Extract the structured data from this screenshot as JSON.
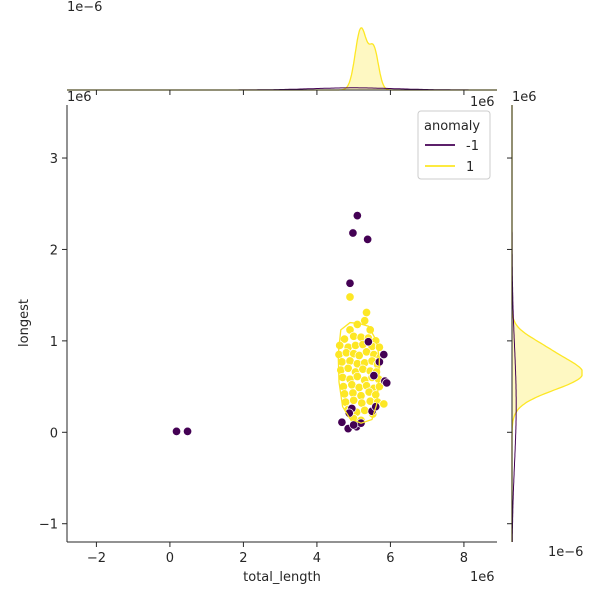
{
  "chart_data": {
    "type": "scatter",
    "xlabel": "total_length",
    "ylabel": "longest",
    "x_offset_label": "1e6",
    "y_offset_label": "1e6",
    "top_marginal_offset_label": "1e−6",
    "right_marginal_offset_label": "1e−6",
    "xlim": [
      -2.8,
      8.9
    ],
    "ylim": [
      -1.2,
      3.58
    ],
    "xticks": [
      -2,
      0,
      2,
      4,
      6,
      8
    ],
    "xtick_labels": [
      "−2",
      "0",
      "2",
      "4",
      "6",
      "8"
    ],
    "yticks": [
      -1,
      0,
      1,
      2,
      3
    ],
    "ytick_labels": [
      "−1",
      "0",
      "1",
      "2",
      "3"
    ],
    "grid": false,
    "legend": {
      "title": "anomaly",
      "placement": "top-right",
      "entries": [
        {
          "label": "-1",
          "color": "#440154"
        },
        {
          "label": "1",
          "color": "#fde725"
        }
      ]
    },
    "series": [
      {
        "name": "-1",
        "color": "#440154",
        "points": [
          [
            0.18,
            0.01
          ],
          [
            0.48,
            0.01
          ],
          [
            5.1,
            2.37
          ],
          [
            4.98,
            2.18
          ],
          [
            5.38,
            2.11
          ],
          [
            4.9,
            1.63
          ],
          [
            5.82,
            0.85
          ],
          [
            5.7,
            0.77
          ],
          [
            5.4,
            0.99
          ],
          [
            5.85,
            0.56
          ],
          [
            5.9,
            0.54
          ],
          [
            5.55,
            0.62
          ],
          [
            5.5,
            0.23
          ],
          [
            4.95,
            0.26
          ],
          [
            4.88,
            0.21
          ],
          [
            5.6,
            0.28
          ],
          [
            4.68,
            0.11
          ],
          [
            4.85,
            0.04
          ],
          [
            5.08,
            0.06
          ],
          [
            5.2,
            0.1
          ],
          [
            5.0,
            0.08
          ]
        ]
      },
      {
        "name": "1",
        "color": "#fde725",
        "points": [
          [
            4.9,
            1.48
          ],
          [
            5.35,
            1.31
          ],
          [
            5.3,
            1.22
          ],
          [
            5.1,
            1.18
          ],
          [
            4.9,
            1.12
          ],
          [
            5.45,
            1.12
          ],
          [
            4.75,
            1.02
          ],
          [
            5.0,
            1.05
          ],
          [
            5.2,
            1.04
          ],
          [
            5.4,
            1.03
          ],
          [
            5.6,
            1.0
          ],
          [
            4.62,
            0.95
          ],
          [
            4.85,
            0.93
          ],
          [
            5.05,
            0.95
          ],
          [
            5.25,
            0.96
          ],
          [
            5.5,
            0.94
          ],
          [
            5.7,
            0.93
          ],
          [
            4.6,
            0.85
          ],
          [
            4.8,
            0.87
          ],
          [
            5.0,
            0.86
          ],
          [
            5.15,
            0.84
          ],
          [
            5.35,
            0.88
          ],
          [
            5.55,
            0.85
          ],
          [
            5.72,
            0.82
          ],
          [
            4.68,
            0.77
          ],
          [
            4.9,
            0.78
          ],
          [
            5.1,
            0.75
          ],
          [
            5.3,
            0.76
          ],
          [
            5.5,
            0.78
          ],
          [
            5.65,
            0.74
          ],
          [
            4.65,
            0.68
          ],
          [
            4.85,
            0.7
          ],
          [
            5.05,
            0.66
          ],
          [
            5.25,
            0.69
          ],
          [
            5.45,
            0.67
          ],
          [
            5.62,
            0.66
          ],
          [
            4.7,
            0.6
          ],
          [
            4.9,
            0.58
          ],
          [
            5.1,
            0.61
          ],
          [
            5.3,
            0.57
          ],
          [
            5.5,
            0.6
          ],
          [
            5.68,
            0.58
          ],
          [
            4.72,
            0.5
          ],
          [
            4.95,
            0.52
          ],
          [
            5.15,
            0.49
          ],
          [
            5.35,
            0.51
          ],
          [
            5.55,
            0.48
          ],
          [
            5.7,
            0.5
          ],
          [
            4.75,
            0.42
          ],
          [
            4.98,
            0.43
          ],
          [
            5.2,
            0.4
          ],
          [
            5.42,
            0.44
          ],
          [
            5.6,
            0.41
          ],
          [
            4.78,
            0.33
          ],
          [
            5.0,
            0.35
          ],
          [
            5.22,
            0.32
          ],
          [
            5.45,
            0.34
          ],
          [
            5.65,
            0.33
          ],
          [
            4.85,
            0.25
          ],
          [
            5.08,
            0.22
          ],
          [
            5.3,
            0.24
          ],
          [
            5.52,
            0.2
          ],
          [
            5.82,
            0.31
          ],
          [
            5.0,
            0.15
          ],
          [
            5.2,
            0.13
          ]
        ]
      }
    ],
    "kde_contour_color": "#fde725",
    "marginal_top": {
      "peak_x": 5.2,
      "color": "#fde725"
    },
    "marginal_right": {
      "peak_y": 0.64,
      "color": "#fde725"
    }
  }
}
